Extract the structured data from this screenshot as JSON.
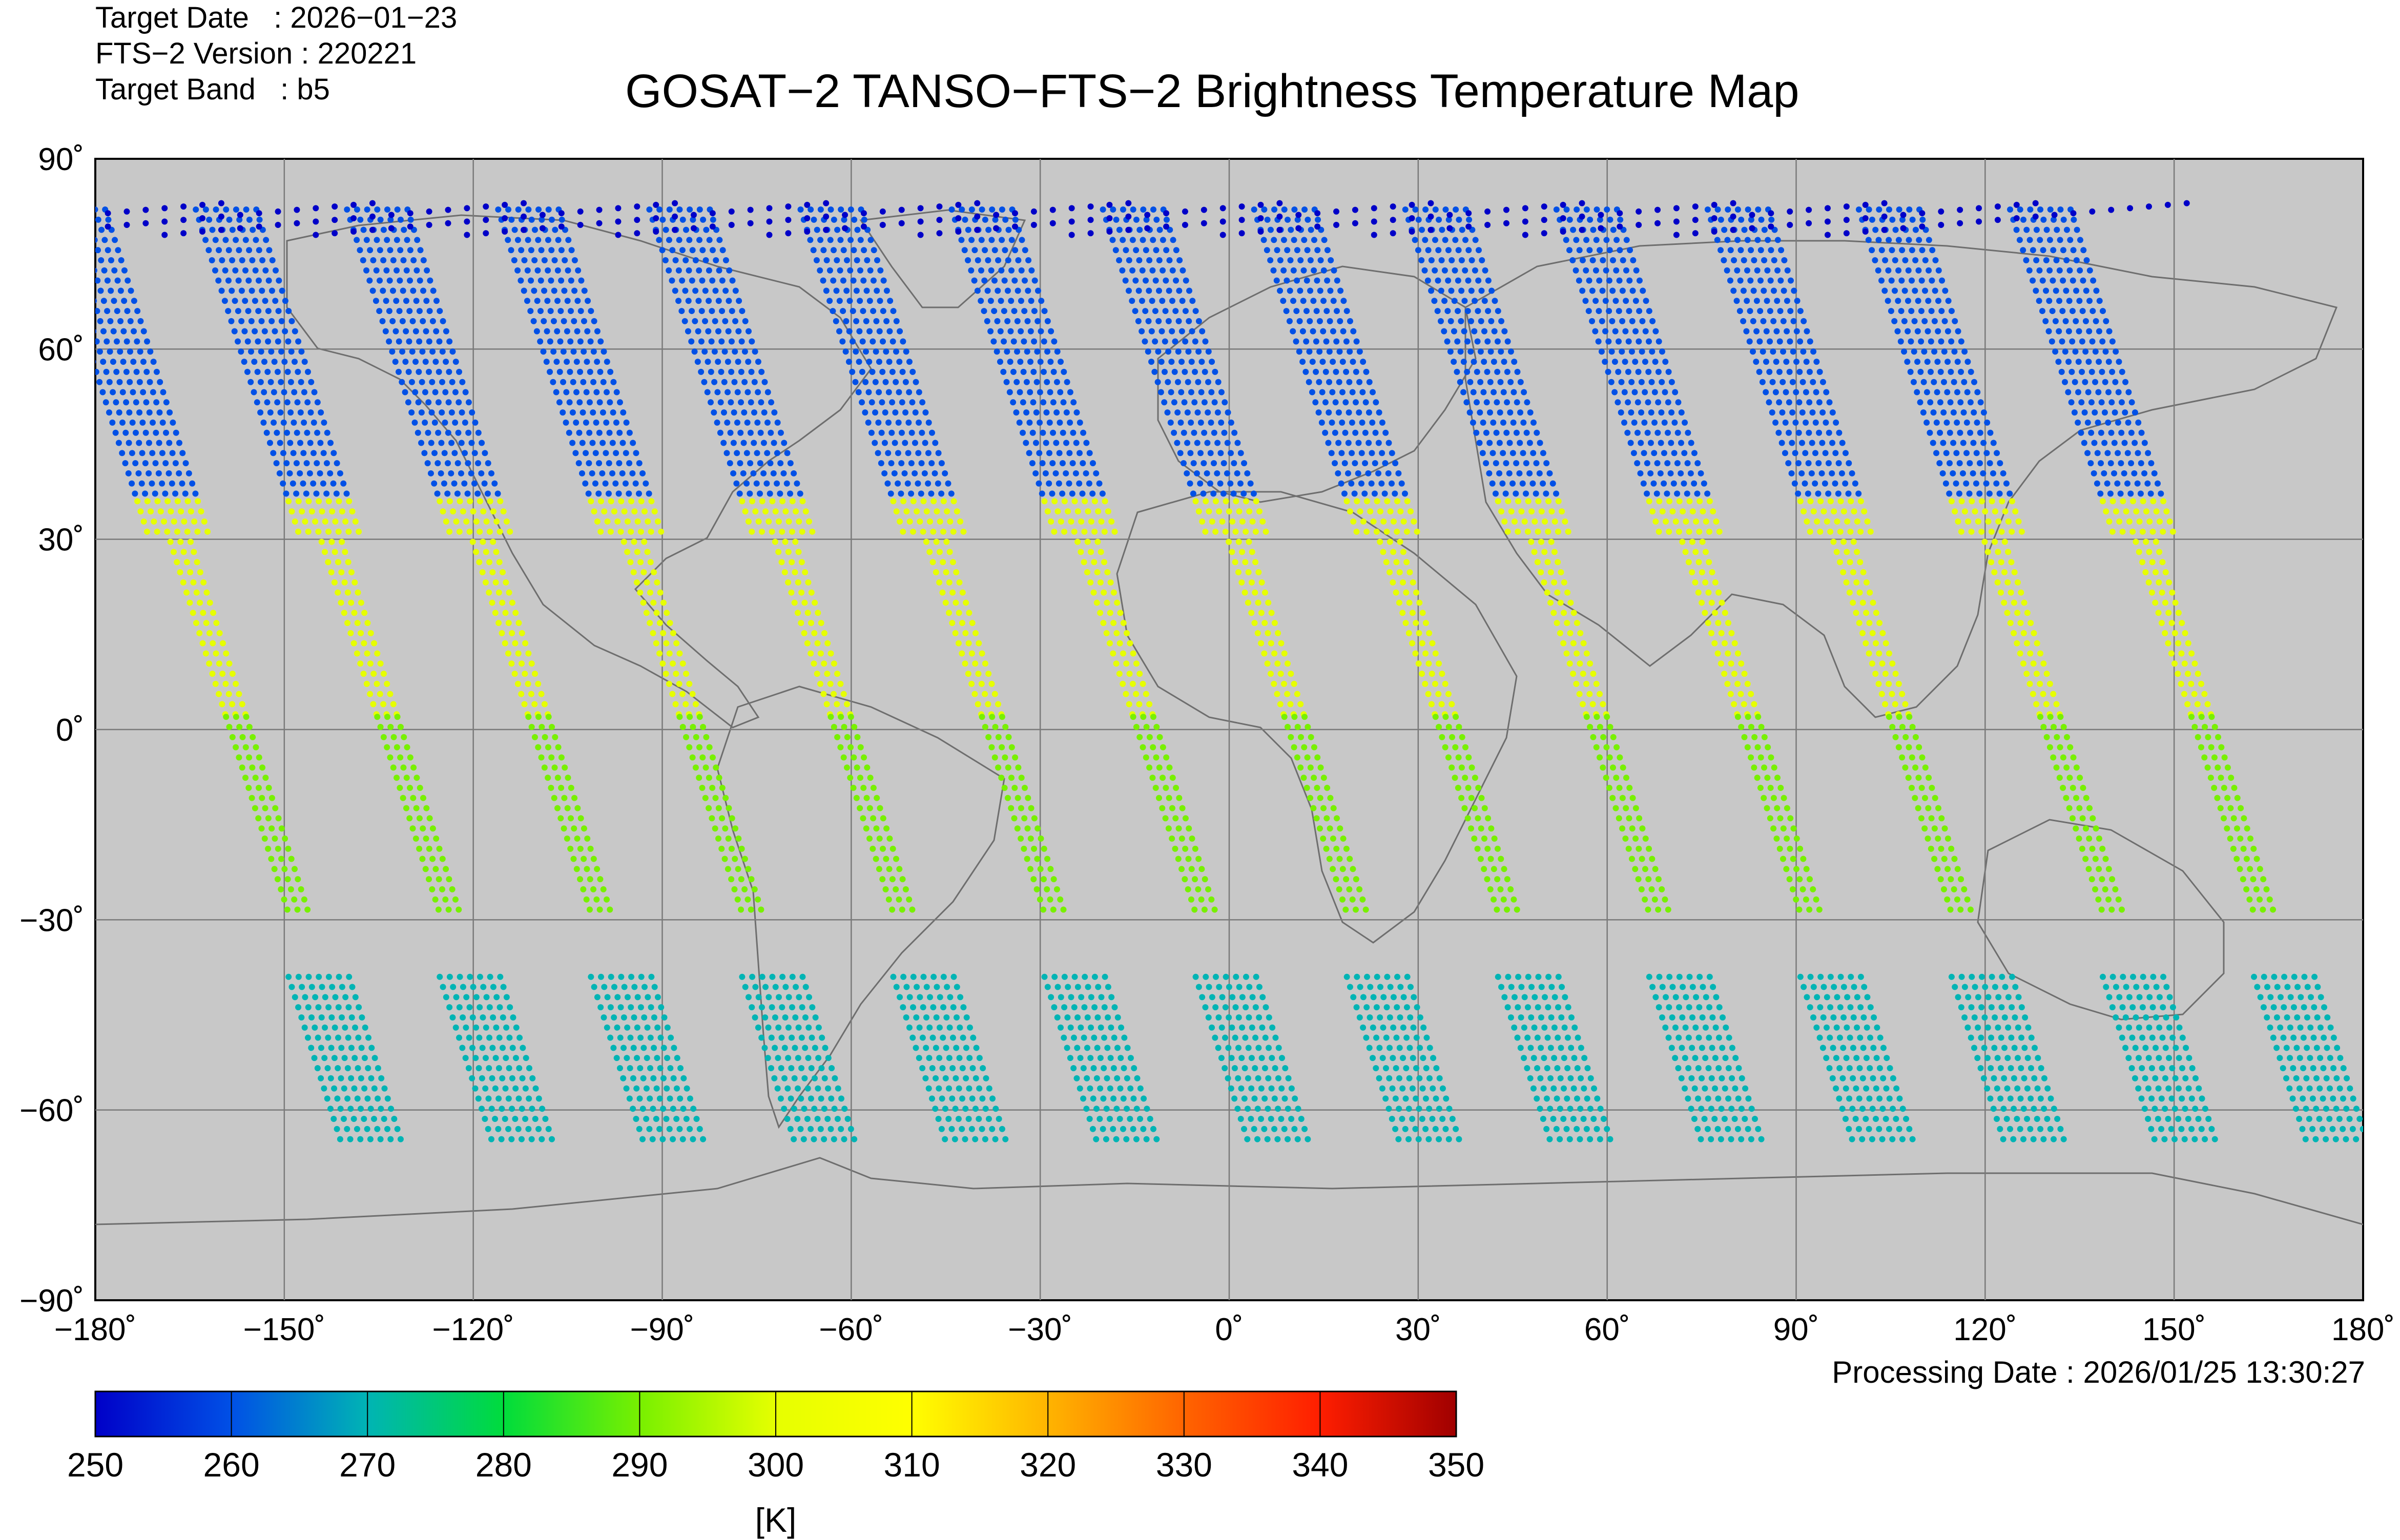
{
  "meta": {
    "target_date_label": "Target Date",
    "target_date_value": ": 2026−01−23",
    "version_label": "FTS−2 Version",
    "version_value": ": 220221",
    "band_label": "Target Band",
    "band_value": ": b5"
  },
  "title": "GOSAT−2 TANSO−FTS−2 Brightness Temperature Map",
  "processing_date": "Processing Date : 2026/01/25 13:30:27",
  "chart_data": {
    "type": "map",
    "title": "GOSAT−2 TANSO−FTS−2 Brightness Temperature Map",
    "projection": "equirectangular",
    "lon_range": [
      -180,
      180
    ],
    "lat_range": [
      -90,
      90
    ],
    "grid": true,
    "background": "#c8c8c8",
    "lon_ticks": [
      -180,
      -150,
      -120,
      -90,
      -60,
      -30,
      0,
      30,
      60,
      90,
      120,
      150,
      180
    ],
    "lon_tick_labels": [
      "−180˚",
      "−150˚",
      "−120˚",
      "−90˚",
      "−60˚",
      "−30˚",
      "0˚",
      "30˚",
      "60˚",
      "90˚",
      "120˚",
      "150˚",
      "180˚"
    ],
    "lat_ticks": [
      90,
      60,
      30,
      0,
      -30,
      -60,
      -90
    ],
    "lat_tick_labels": [
      "90˚",
      "60˚",
      "30˚",
      "0˚",
      "−30˚",
      "−60˚",
      "−90˚"
    ],
    "colorbar": {
      "label": "[K]",
      "min": 250,
      "max": 350,
      "ticks": [
        250,
        260,
        270,
        280,
        290,
        300,
        310,
        320,
        330,
        340,
        350
      ],
      "tick_labels": [
        "250",
        "260",
        "270",
        "280",
        "290",
        "300",
        "310",
        "320",
        "330",
        "340",
        "350"
      ],
      "colors": [
        "#0000c8",
        "#0050e6",
        "#00b4b4",
        "#00dc3c",
        "#78f000",
        "#e6ff00",
        "#ffff00",
        "#ffb400",
        "#ff6400",
        "#ff1e00",
        "#a00000"
      ]
    },
    "orbit_tracks": {
      "equator_crossing_lon": [
        -157,
        -133,
        -109,
        -85,
        -61,
        -37,
        -13,
        11,
        35,
        59,
        83,
        107,
        131,
        155
      ],
      "lat_segments": [
        {
          "lat": [
            82,
            36
          ],
          "temp_k": 258
        },
        {
          "lat": [
            36,
            2
          ],
          "temp_k": 296
        },
        {
          "lat": [
            2,
            -30
          ],
          "temp_k": 290
        },
        {
          "lat": [
            -39,
            -66
          ],
          "temp_k": 268
        }
      ],
      "polar_band": {
        "lat": [
          83,
          78
        ],
        "temp_k": 253
      }
    }
  }
}
